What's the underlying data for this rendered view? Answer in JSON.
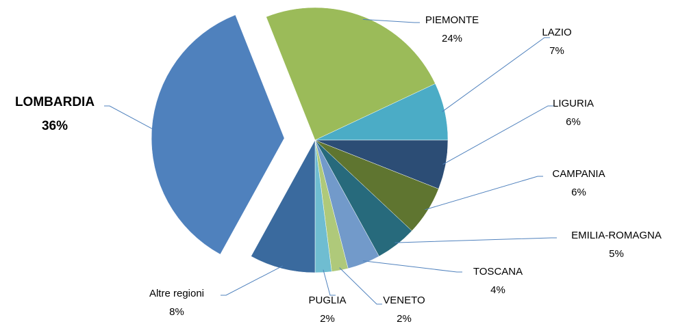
{
  "chart_data": {
    "type": "pie",
    "categories": [
      "PIEMONTE",
      "LAZIO",
      "LIGURIA",
      "CAMPANIA",
      "EMILIA-ROMAGNA",
      "TOSCANA",
      "VENETO",
      "PUGLIA",
      "Altre regioni",
      "LOMBARDIA"
    ],
    "values": [
      24,
      7,
      6,
      6,
      5,
      4,
      2,
      2,
      8,
      36
    ],
    "value_labels": [
      "24%",
      "7%",
      "6%",
      "6%",
      "5%",
      "4%",
      "2%",
      "2%",
      "8%",
      "36%"
    ],
    "colors": [
      "#9bbb59",
      "#4bacc6",
      "#2c4d75",
      "#5f7530",
      "#276a7c",
      "#729aca",
      "#afc97a",
      "#6fbdd1",
      "#3a6a9e",
      "#4f81bd"
    ],
    "exploded": "LOMBARDIA"
  }
}
